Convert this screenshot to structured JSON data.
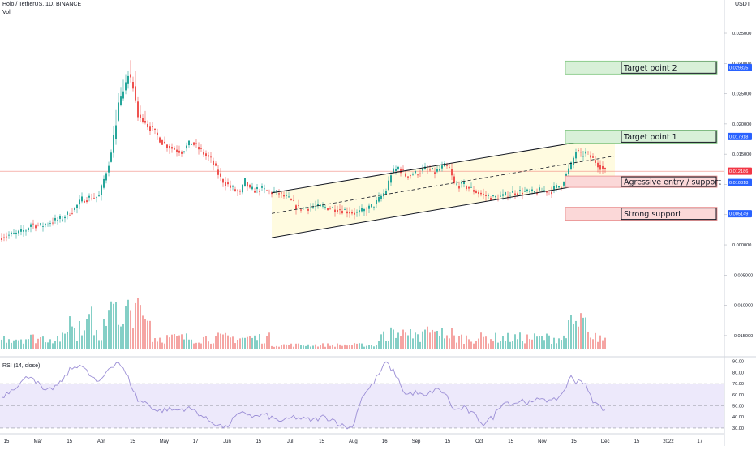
{
  "header": {
    "symbol_line": "Holo / TetherUS, 1D, BINANCE",
    "vol_label": "Vol",
    "currency": "USDT",
    "rsi_label": "RSI (14, close)"
  },
  "colors": {
    "up": "#26a69a",
    "down": "#ef5350",
    "rsi_line": "#9c8fd6",
    "rsi_fill": "#ede9fb",
    "channel_fill": "#fffbe0",
    "target_fill": "#d8f0d8",
    "support_fill": "#fbd8d8",
    "price_line": "#f28b82",
    "badge_blue": "#2962ff",
    "badge_red": "#f23645"
  },
  "chart_data": {
    "type": "candlestick",
    "title": "Holo / TetherUS, 1D, BINANCE",
    "ylabel": "USDT",
    "ylim": [
      -0.0185,
      0.0405
    ],
    "y_ticks": [
      "0.040000",
      "0.035000",
      "0.030000",
      "0.025000",
      "0.020000",
      "0.015000",
      "0.010000",
      "0.005000",
      "0.000000",
      "-0.005000",
      "-0.010000",
      "-0.015000"
    ],
    "x_tick_labels": [
      "15",
      "Mar",
      "15",
      "Apr",
      "15",
      "May",
      "17",
      "Jun",
      "15",
      "Jul",
      "15",
      "Aug",
      "16",
      "Sep",
      "15",
      "Oct",
      "15",
      "Nov",
      "15",
      "Dec",
      "15",
      "2022",
      "17"
    ],
    "price_path": [
      [
        0,
        0.0014
      ],
      [
        6,
        0.0018
      ],
      [
        10,
        0.0025
      ],
      [
        12,
        0.0035
      ],
      [
        16,
        0.0031
      ],
      [
        20,
        0.0038
      ],
      [
        24,
        0.0042
      ],
      [
        30,
        0.006
      ],
      [
        33,
        0.0075
      ],
      [
        36,
        0.0078
      ],
      [
        40,
        0.008
      ],
      [
        45,
        0.015
      ],
      [
        48,
        0.023
      ],
      [
        50,
        0.0255
      ],
      [
        52,
        0.028
      ],
      [
        54,
        0.0262
      ],
      [
        56,
        0.0215
      ],
      [
        58,
        0.0205
      ],
      [
        62,
        0.019
      ],
      [
        66,
        0.017
      ],
      [
        70,
        0.016
      ],
      [
        74,
        0.0155
      ],
      [
        78,
        0.017
      ],
      [
        82,
        0.0155
      ],
      [
        86,
        0.014
      ],
      [
        90,
        0.011
      ],
      [
        94,
        0.0095
      ],
      [
        98,
        0.0085
      ],
      [
        100,
        0.0105
      ],
      [
        102,
        0.009
      ],
      [
        106,
        0.0092
      ],
      [
        110,
        0.0088
      ],
      [
        114,
        0.0085
      ],
      [
        118,
        0.0075
      ],
      [
        122,
        0.006
      ],
      [
        128,
        0.0063
      ],
      [
        134,
        0.0062
      ],
      [
        140,
        0.0058
      ],
      [
        146,
        0.0052
      ],
      [
        150,
        0.0058
      ],
      [
        154,
        0.007
      ],
      [
        158,
        0.009
      ],
      [
        160,
        0.0118
      ],
      [
        163,
        0.0128
      ],
      [
        166,
        0.0115
      ],
      [
        170,
        0.0118
      ],
      [
        174,
        0.0125
      ],
      [
        178,
        0.012
      ],
      [
        182,
        0.013
      ],
      [
        184,
        0.0125
      ],
      [
        186,
        0.01
      ],
      [
        190,
        0.0098
      ],
      [
        194,
        0.009
      ],
      [
        198,
        0.0082
      ],
      [
        202,
        0.0078
      ],
      [
        206,
        0.008
      ],
      [
        210,
        0.0087
      ],
      [
        214,
        0.0088
      ],
      [
        218,
        0.0086
      ],
      [
        222,
        0.009
      ],
      [
        226,
        0.009
      ],
      [
        230,
        0.01
      ],
      [
        234,
        0.0132
      ],
      [
        236,
        0.0155
      ],
      [
        238,
        0.0148
      ],
      [
        240,
        0.0152
      ],
      [
        242,
        0.0145
      ],
      [
        244,
        0.0138
      ],
      [
        246,
        0.013
      ],
      [
        248,
        0.0121
      ]
    ],
    "last_price": 0.012186,
    "levels": [
      {
        "label": "Target point 2",
        "value": 0.029325,
        "badge": "0.029325",
        "kind": "target"
      },
      {
        "label": "Target point 1",
        "value": 0.017918,
        "badge": "0.017918",
        "kind": "target"
      },
      {
        "label": "Agressive entry / support",
        "value": 0.010318,
        "badge": "0.010318",
        "kind": "support"
      },
      {
        "label": "Strong support",
        "value": 0.005149,
        "badge": "0.005149",
        "kind": "support"
      }
    ],
    "current_badge": "0.012186",
    "channel": {
      "start_day": 111,
      "end_day": 252,
      "upper": [
        0.0086,
        0.018
      ],
      "mid": [
        0.0052,
        0.0147
      ],
      "lower": [
        0.0012,
        0.0108
      ]
    },
    "volume_note": "daily volume histogram",
    "rsi": {
      "name": "RSI (14, close)",
      "ylim": [
        27,
        92
      ],
      "y_ticks": [
        "90.00",
        "80.00",
        "70.00",
        "60.00",
        "50.00",
        "40.00",
        "30.00"
      ],
      "overbought": 70,
      "oversold": 30,
      "mid": 50,
      "path": [
        [
          0,
          58
        ],
        [
          6,
          68
        ],
        [
          12,
          78
        ],
        [
          18,
          62
        ],
        [
          24,
          70
        ],
        [
          28,
          82
        ],
        [
          32,
          88
        ],
        [
          36,
          78
        ],
        [
          40,
          70
        ],
        [
          44,
          84
        ],
        [
          48,
          90
        ],
        [
          52,
          75
        ],
        [
          56,
          55
        ],
        [
          60,
          52
        ],
        [
          64,
          45
        ],
        [
          68,
          47
        ],
        [
          72,
          46
        ],
        [
          76,
          48
        ],
        [
          80,
          45
        ],
        [
          84,
          38
        ],
        [
          88,
          34
        ],
        [
          92,
          30
        ],
        [
          96,
          40
        ],
        [
          100,
          44
        ],
        [
          104,
          40
        ],
        [
          108,
          42
        ],
        [
          112,
          38
        ],
        [
          116,
          36
        ],
        [
          120,
          40
        ],
        [
          124,
          38
        ],
        [
          128,
          37
        ],
        [
          132,
          40
        ],
        [
          136,
          38
        ],
        [
          140,
          32
        ],
        [
          144,
          30
        ],
        [
          148,
          58
        ],
        [
          152,
          68
        ],
        [
          156,
          82
        ],
        [
          158,
          89
        ],
        [
          162,
          78
        ],
        [
          166,
          60
        ],
        [
          170,
          62
        ],
        [
          174,
          58
        ],
        [
          178,
          65
        ],
        [
          182,
          62
        ],
        [
          186,
          46
        ],
        [
          190,
          48
        ],
        [
          194,
          42
        ],
        [
          198,
          34
        ],
        [
          202,
          40
        ],
        [
          206,
          54
        ],
        [
          210,
          52
        ],
        [
          214,
          55
        ],
        [
          218,
          52
        ],
        [
          222,
          58
        ],
        [
          226,
          53
        ],
        [
          230,
          60
        ],
        [
          234,
          76
        ],
        [
          236,
          72
        ],
        [
          238,
          74
        ],
        [
          240,
          68
        ],
        [
          242,
          58
        ],
        [
          244,
          52
        ],
        [
          248,
          47
        ]
      ]
    }
  }
}
